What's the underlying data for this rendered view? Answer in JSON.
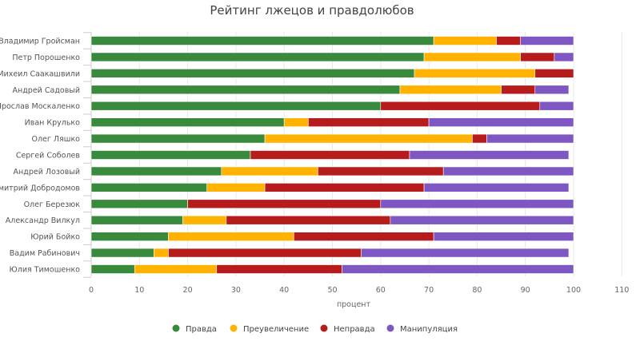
{
  "chart_data": {
    "type": "bar",
    "orientation": "horizontal",
    "stacked": true,
    "title": "Рейтинг лжецов и правдолюбов",
    "xlabel": "процент",
    "ylabel": "",
    "xlim": [
      0,
      110
    ],
    "xticks": [
      "0",
      "10",
      "20",
      "30",
      "40",
      "50",
      "60",
      "70",
      "80",
      "90",
      "100",
      "110"
    ],
    "grid": true,
    "legend_position": "bottom",
    "categories": [
      "Владимир Гройсман",
      "Петр Порошенко",
      "Михеил Саакашвили",
      "Андрей Садовый",
      "Ярослав Москаленко",
      "Иван Крулько",
      "Олег Ляшко",
      "Сергей Соболев",
      "Андрей Лозовый",
      "Дмитрий Добродомов",
      "Олег Березюк",
      "Александр Вилкул",
      "Юрий Бойко",
      "Вадим Рабинович",
      "Юлия Тимошенко"
    ],
    "series": [
      {
        "name": "Правда",
        "color": "#3a8a3d",
        "values": [
          71,
          69,
          67,
          64,
          60,
          40,
          36,
          33,
          27,
          24,
          20,
          19,
          16,
          13,
          9
        ]
      },
      {
        "name": "Преувеличение",
        "color": "#ffb300",
        "values": [
          13,
          20,
          25,
          21,
          0,
          5,
          43,
          0,
          20,
          12,
          0,
          9,
          26,
          3,
          17
        ]
      },
      {
        "name": "Неправда",
        "color": "#b71c1c",
        "values": [
          5,
          7,
          8,
          7,
          33,
          25,
          3,
          33,
          26,
          33,
          40,
          34,
          29,
          40,
          26
        ]
      },
      {
        "name": "Манипуляция",
        "color": "#7e57c2",
        "values": [
          11,
          4,
          0,
          7,
          7,
          30,
          18,
          33,
          27,
          30,
          40,
          38,
          29,
          43,
          48
        ]
      }
    ]
  }
}
